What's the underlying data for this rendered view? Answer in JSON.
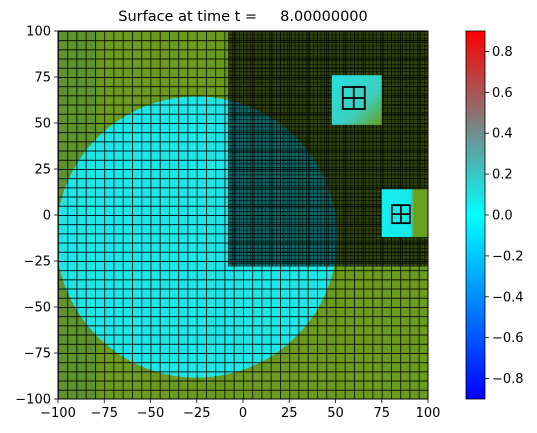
{
  "chart_data": {
    "type": "heatmap",
    "title": "Surface at time t =     8.00000000",
    "xlabel": "",
    "ylabel": "",
    "xlim": [
      -100,
      100
    ],
    "ylim": [
      -100,
      100
    ],
    "xticks": [
      "−100",
      "−75",
      "−50",
      "−25",
      "0",
      "25",
      "50",
      "75",
      "100"
    ],
    "yticks": [
      "−100",
      "−75",
      "−50",
      "−25",
      "0",
      "25",
      "50",
      "75",
      "100"
    ],
    "colorbar": {
      "range": [
        -0.9,
        0.9
      ],
      "ticks": [
        "−0.8",
        "−0.6",
        "−0.4",
        "−0.2",
        "0.0",
        "0.2",
        "0.4",
        "0.6",
        "0.8"
      ],
      "colors": [
        "#0000ff",
        "#00ffff",
        "#ff0000"
      ]
    },
    "surface": {
      "disk_center": [
        -25,
        -12
      ],
      "disk_radius": 76,
      "disk_color": "#1ee6e6",
      "background_color": "#6a9a1e",
      "coarse_cell": 5,
      "refined_region": {
        "x": [
          -8,
          100
        ],
        "y": [
          -28,
          100
        ],
        "cell": 2
      },
      "fine_patches": [
        {
          "x": [
            48,
            75
          ],
          "y": [
            49,
            76
          ],
          "color": "#2fd8d0"
        },
        {
          "x": [
            75,
            100
          ],
          "y": [
            -12,
            14
          ],
          "color": "#10f0f0"
        }
      ]
    }
  }
}
